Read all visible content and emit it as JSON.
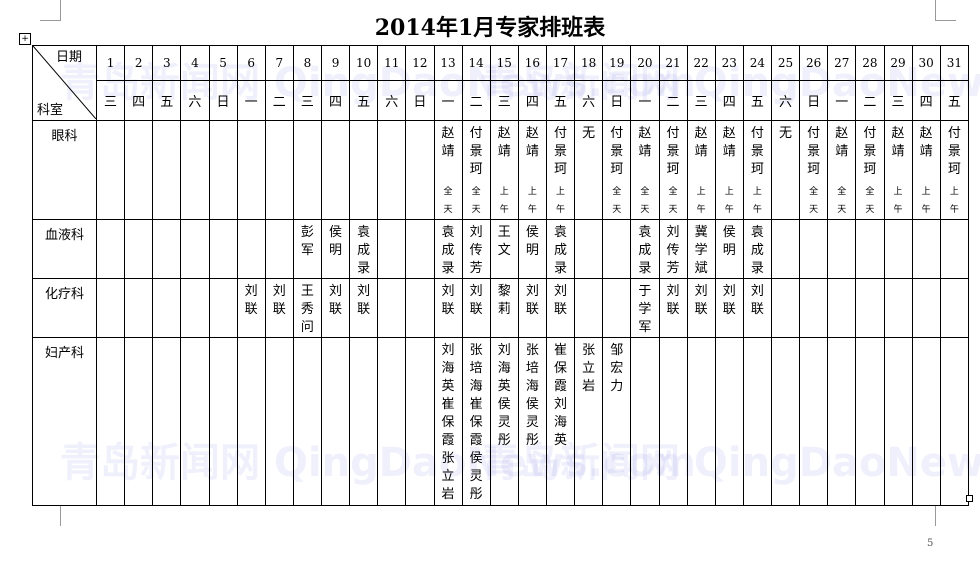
{
  "title": "2014年1月专家排班表",
  "header": {
    "date_label": "日期",
    "dept_label": "科室"
  },
  "watermark": "青岛新闻网 QingDaoNews.com",
  "page_number": "5",
  "days": [
    "1",
    "2",
    "3",
    "4",
    "5",
    "6",
    "7",
    "8",
    "9",
    "10",
    "11",
    "12",
    "13",
    "14",
    "15",
    "16",
    "17",
    "18",
    "19",
    "20",
    "21",
    "22",
    "23",
    "24",
    "25",
    "26",
    "27",
    "28",
    "29",
    "30",
    "31"
  ],
  "weekdays": [
    "三",
    "四",
    "五",
    "六",
    "日",
    "一",
    "二",
    "三",
    "四",
    "五",
    "六",
    "日",
    "一",
    "二",
    "三",
    "四",
    "五",
    "六",
    "日",
    "一",
    "二",
    "三",
    "四",
    "五",
    "六",
    "日",
    "一",
    "二",
    "三",
    "四",
    "五"
  ],
  "rows": [
    {
      "dept": "眼科",
      "cells": {
        "13": [
          "赵靖",
          "全天"
        ],
        "14": [
          "付景珂",
          "全天"
        ],
        "15": [
          "赵靖",
          "上午"
        ],
        "16": [
          "赵靖",
          "上午"
        ],
        "17": [
          "付景珂",
          "上午"
        ],
        "18": [
          "无",
          ""
        ],
        "19": [
          "付景珂",
          "全天"
        ],
        "20": [
          "赵靖",
          "全天"
        ],
        "21": [
          "付景珂",
          "全天"
        ],
        "22": [
          "赵靖",
          "上午"
        ],
        "23": [
          "赵靖",
          "上午"
        ],
        "24": [
          "付景珂",
          "上午"
        ],
        "25": [
          "无",
          ""
        ],
        "26": [
          "付景珂",
          "全天"
        ],
        "27": [
          "赵靖",
          "全天"
        ],
        "28": [
          "付景珂",
          "全天"
        ],
        "29": [
          "赵靖",
          "上午"
        ],
        "30": [
          "赵靖",
          "上午"
        ],
        "31": [
          "付景珂",
          "上午"
        ]
      }
    },
    {
      "dept": "血液科",
      "cells": {
        "8": [
          "彭军"
        ],
        "9": [
          "侯明"
        ],
        "10": [
          "袁成录"
        ],
        "13": [
          "袁成录"
        ],
        "14": [
          "刘传芳"
        ],
        "15": [
          "王文"
        ],
        "16": [
          "侯明"
        ],
        "17": [
          "袁成录"
        ],
        "20": [
          "袁成录"
        ],
        "21": [
          "刘传芳"
        ],
        "22": [
          "冀学斌"
        ],
        "23": [
          "侯明"
        ],
        "24": [
          "袁成录"
        ]
      }
    },
    {
      "dept": "化疗科",
      "cells": {
        "6": [
          "刘联"
        ],
        "7": [
          "刘联"
        ],
        "8": [
          "王秀问"
        ],
        "9": [
          "刘联"
        ],
        "10": [
          "刘联"
        ],
        "13": [
          "刘联"
        ],
        "14": [
          "刘联"
        ],
        "15": [
          "黎莉"
        ],
        "16": [
          "刘联"
        ],
        "17": [
          "刘联"
        ],
        "20": [
          "于学军"
        ],
        "21": [
          "刘联"
        ],
        "22": [
          "刘联"
        ],
        "23": [
          "刘联"
        ],
        "24": [
          "刘联"
        ]
      }
    },
    {
      "dept": "妇产科",
      "cells": {
        "13": [
          "刘海英崔保霞张立岩"
        ],
        "14": [
          "张培海崔保霞侯灵彤"
        ],
        "15": [
          "刘海英侯灵彤"
        ],
        "16": [
          "张培海侯灵彤"
        ],
        "17": [
          "崔保霞刘海英"
        ],
        "18": [
          "张立岩"
        ],
        "19": [
          "邹宏力"
        ]
      }
    }
  ]
}
